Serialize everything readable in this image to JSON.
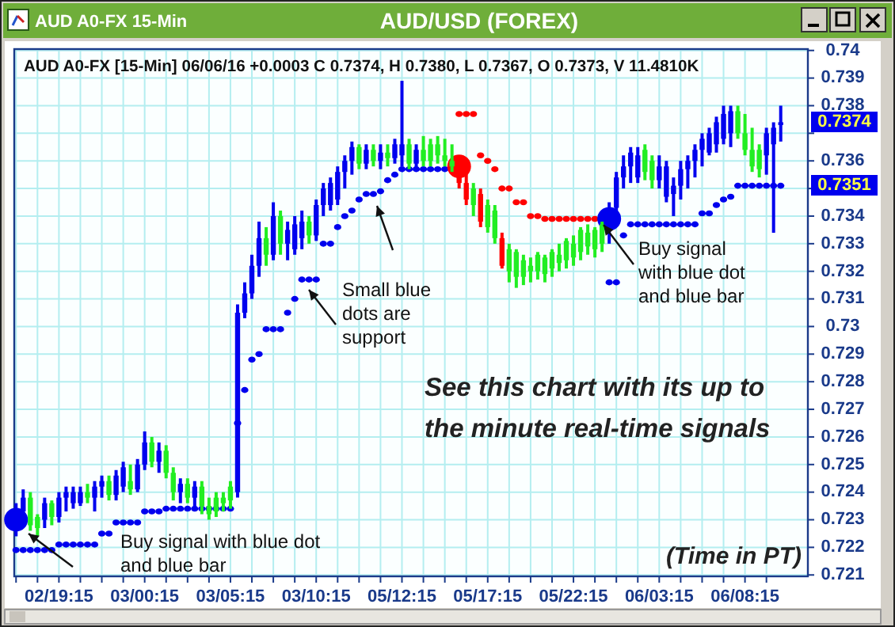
{
  "chart_data": {
    "type": "candlestick",
    "title": "AUD/USD (FOREX)",
    "subtitle": "AUD A0-FX [15-Min] 06/06/16 +0.0003 C 0.7374, H 0.7380, L 0.7367, O 0.7373, V 11.4810K",
    "categories": [
      null,
      null,
      null,
      null,
      null,
      null,
      "02/19:15",
      null,
      null,
      null,
      null,
      null,
      null,
      null,
      null,
      null,
      null,
      null,
      "03/00:15",
      null,
      null,
      null,
      null,
      null,
      null,
      null,
      null,
      null,
      null,
      null,
      "03/05:15",
      null,
      null,
      null,
      null,
      null,
      null,
      null,
      null,
      null,
      null,
      null,
      "03/10:15",
      null,
      null,
      null,
      null,
      null,
      null,
      null,
      null,
      null,
      null,
      null,
      "05/12:15",
      null,
      null,
      null,
      null,
      null,
      null,
      null,
      null,
      null,
      null,
      null,
      "05/17:15",
      null,
      null,
      null,
      null,
      null,
      null,
      null,
      null,
      null,
      null,
      null,
      "05/22:15",
      null,
      null,
      null,
      null,
      null,
      null,
      null,
      null,
      null,
      null,
      null,
      "06/03:15",
      null,
      null,
      null,
      null,
      null,
      null,
      null,
      null,
      null,
      null,
      null,
      "06/08:15",
      null,
      null,
      null,
      null,
      null
    ],
    "ohlc": [
      [
        0.7228,
        0.7236,
        0.7224,
        0.7233
      ],
      [
        0.7233,
        0.7241,
        0.723,
        0.7238
      ],
      [
        0.7238,
        0.724,
        0.7226,
        0.7228
      ],
      [
        0.7231,
        0.7232,
        0.7224,
        0.7227
      ],
      [
        0.723,
        0.7238,
        0.7227,
        0.7236
      ],
      [
        0.7236,
        0.7237,
        0.7228,
        0.7231
      ],
      [
        0.7231,
        0.724,
        0.7229,
        0.7238
      ],
      [
        0.7238,
        0.7242,
        0.7233,
        0.724
      ],
      [
        0.7236,
        0.7242,
        0.7234,
        0.724
      ],
      [
        0.7236,
        0.7242,
        0.7235,
        0.724
      ],
      [
        0.724,
        0.7243,
        0.7236,
        0.7238
      ],
      [
        0.7238,
        0.7244,
        0.7233,
        0.7242
      ],
      [
        0.7242,
        0.7246,
        0.7238,
        0.7244
      ],
      [
        0.7244,
        0.7246,
        0.7237,
        0.7239
      ],
      [
        0.7239,
        0.7248,
        0.7237,
        0.7246
      ],
      [
        0.7242,
        0.7251,
        0.724,
        0.7249
      ],
      [
        0.7244,
        0.725,
        0.7239,
        0.7241
      ],
      [
        0.7241,
        0.7252,
        0.724,
        0.725
      ],
      [
        0.725,
        0.7262,
        0.7248,
        0.7258
      ],
      [
        0.7258,
        0.726,
        0.7249,
        0.7251
      ],
      [
        0.7251,
        0.7258,
        0.7247,
        0.7255
      ],
      [
        0.7255,
        0.7257,
        0.7245,
        0.7247
      ],
      [
        0.7247,
        0.7249,
        0.7237,
        0.724
      ],
      [
        0.724,
        0.7245,
        0.7236,
        0.7243
      ],
      [
        0.7243,
        0.7245,
        0.7236,
        0.7238
      ],
      [
        0.7238,
        0.7244,
        0.7235,
        0.7242
      ],
      [
        0.7242,
        0.7244,
        0.7232,
        0.7235
      ],
      [
        0.7235,
        0.7238,
        0.723,
        0.7232
      ],
      [
        0.7238,
        0.724,
        0.7231,
        0.7233
      ],
      [
        0.7238,
        0.724,
        0.7233,
        0.7236
      ],
      [
        0.7242,
        0.7244,
        0.7234,
        0.7237
      ],
      [
        0.724,
        0.7308,
        0.7238,
        0.7305
      ],
      [
        0.7305,
        0.7316,
        0.7303,
        0.7312
      ],
      [
        0.7312,
        0.7326,
        0.731,
        0.7322
      ],
      [
        0.7322,
        0.7338,
        0.7318,
        0.7332
      ],
      [
        0.7332,
        0.7336,
        0.7322,
        0.7326
      ],
      [
        0.7326,
        0.7345,
        0.7324,
        0.734
      ],
      [
        0.734,
        0.7342,
        0.7326,
        0.733
      ],
      [
        0.733,
        0.7338,
        0.7324,
        0.7335
      ],
      [
        0.7328,
        0.734,
        0.7326,
        0.7337
      ],
      [
        0.7332,
        0.7342,
        0.7328,
        0.7338
      ],
      [
        0.7338,
        0.734,
        0.733,
        0.7333
      ],
      [
        0.7333,
        0.7346,
        0.7331,
        0.7344
      ],
      [
        0.7344,
        0.7352,
        0.734,
        0.735
      ],
      [
        0.7344,
        0.7354,
        0.7342,
        0.7352
      ],
      [
        0.7346,
        0.7358,
        0.7344,
        0.7356
      ],
      [
        0.7356,
        0.7362,
        0.735,
        0.736
      ],
      [
        0.736,
        0.7367,
        0.7355,
        0.7365
      ],
      [
        0.7365,
        0.7366,
        0.7357,
        0.7359
      ],
      [
        0.7359,
        0.7366,
        0.7357,
        0.7364
      ],
      [
        0.7364,
        0.7366,
        0.7358,
        0.736
      ],
      [
        0.736,
        0.7366,
        0.7357,
        0.7363
      ],
      [
        0.7363,
        0.7366,
        0.7358,
        0.7361
      ],
      [
        0.7361,
        0.7368,
        0.7359,
        0.7366
      ],
      [
        0.7362,
        0.7389,
        0.7358,
        0.7366
      ],
      [
        0.7366,
        0.7368,
        0.7357,
        0.7359
      ],
      [
        0.7359,
        0.7366,
        0.7357,
        0.7364
      ],
      [
        0.7364,
        0.7369,
        0.7358,
        0.736
      ],
      [
        0.7366,
        0.7368,
        0.7358,
        0.736
      ],
      [
        0.7366,
        0.7369,
        0.7359,
        0.7362
      ],
      [
        0.7362,
        0.7368,
        0.7358,
        0.736
      ],
      [
        0.736,
        0.7366,
        0.7356,
        0.7358
      ],
      [
        0.7358,
        0.736,
        0.735,
        0.7352
      ],
      [
        0.7352,
        0.7356,
        0.7344,
        0.7346
      ],
      [
        0.735,
        0.7352,
        0.734,
        0.7344
      ],
      [
        0.7348,
        0.735,
        0.7336,
        0.7338
      ],
      [
        0.7344,
        0.7346,
        0.7334,
        0.7336
      ],
      [
        0.7342,
        0.7344,
        0.733,
        0.7332
      ],
      [
        0.7332,
        0.7334,
        0.7321,
        0.7322
      ],
      [
        0.7328,
        0.733,
        0.7316,
        0.732
      ],
      [
        0.7327,
        0.7328,
        0.7314,
        0.7318
      ],
      [
        0.7324,
        0.7326,
        0.7315,
        0.7318
      ],
      [
        0.7322,
        0.7325,
        0.7316,
        0.732
      ],
      [
        0.7326,
        0.7327,
        0.7317,
        0.732
      ],
      [
        0.7325,
        0.7326,
        0.7316,
        0.7319
      ],
      [
        0.7327,
        0.7328,
        0.7318,
        0.7321
      ],
      [
        0.7326,
        0.733,
        0.732,
        0.7323
      ],
      [
        0.7331,
        0.7332,
        0.7321,
        0.7324
      ],
      [
        0.733,
        0.7333,
        0.7322,
        0.7325
      ],
      [
        0.7335,
        0.7336,
        0.7324,
        0.7327
      ],
      [
        0.7334,
        0.7337,
        0.7326,
        0.7329
      ],
      [
        0.7335,
        0.7336,
        0.7325,
        0.7328
      ],
      [
        0.7337,
        0.7338,
        0.7327,
        0.733
      ],
      [
        0.7336,
        0.7345,
        0.733,
        0.7343
      ],
      [
        0.7343,
        0.7356,
        0.734,
        0.7354
      ],
      [
        0.7354,
        0.7362,
        0.735,
        0.7358
      ],
      [
        0.7358,
        0.7365,
        0.7352,
        0.7363
      ],
      [
        0.7354,
        0.7365,
        0.7352,
        0.7362
      ],
      [
        0.7364,
        0.7366,
        0.7353,
        0.7356
      ],
      [
        0.736,
        0.7362,
        0.735,
        0.7353
      ],
      [
        0.7353,
        0.7362,
        0.735,
        0.7358
      ],
      [
        0.7347,
        0.736,
        0.7345,
        0.7358
      ],
      [
        0.7348,
        0.7354,
        0.734,
        0.7351
      ],
      [
        0.7351,
        0.736,
        0.7346,
        0.7357
      ],
      [
        0.7357,
        0.7362,
        0.735,
        0.736
      ],
      [
        0.736,
        0.7366,
        0.7354,
        0.7364
      ],
      [
        0.7364,
        0.737,
        0.7358,
        0.7368
      ],
      [
        0.7363,
        0.7372,
        0.7362,
        0.737
      ],
      [
        0.7366,
        0.7376,
        0.7363,
        0.7374
      ],
      [
        0.7368,
        0.738,
        0.7366,
        0.7377
      ],
      [
        0.737,
        0.738,
        0.7365,
        0.7378
      ],
      [
        0.7378,
        0.738,
        0.7368,
        0.737
      ],
      [
        0.737,
        0.7377,
        0.7362,
        0.7364
      ],
      [
        0.7364,
        0.7372,
        0.7356,
        0.7358
      ],
      [
        0.7364,
        0.7366,
        0.7354,
        0.7357
      ],
      [
        0.7362,
        0.7372,
        0.7355,
        0.737
      ],
      [
        0.7366,
        0.7374,
        0.7334,
        0.7372
      ],
      [
        0.7373,
        0.738,
        0.7367,
        0.7374
      ]
    ],
    "colors": [
      "#0000ee",
      "#0000ee",
      "#22ee22",
      "#22ee22",
      "#0000ee",
      "#22ee22",
      "#0000ee",
      "#0000ee",
      "#0000ee",
      "#0000ee",
      "#22ee22",
      "#0000ee",
      "#0000ee",
      "#22ee22",
      "#0000ee",
      "#0000ee",
      "#22ee22",
      "#0000ee",
      "#0000ee",
      "#22ee22",
      "#0000ee",
      "#22ee22",
      "#22ee22",
      "#0000ee",
      "#22ee22",
      "#0000ee",
      "#22ee22",
      "#22ee22",
      "#22ee22",
      "#22ee22",
      "#22ee22",
      "#0000ee",
      "#0000ee",
      "#0000ee",
      "#0000ee",
      "#22ee22",
      "#0000ee",
      "#22ee22",
      "#0000ee",
      "#0000ee",
      "#0000ee",
      "#22ee22",
      "#0000ee",
      "#0000ee",
      "#0000ee",
      "#0000ee",
      "#0000ee",
      "#0000ee",
      "#22ee22",
      "#0000ee",
      "#22ee22",
      "#0000ee",
      "#22ee22",
      "#0000ee",
      "#0000ee",
      "#22ee22",
      "#0000ee",
      "#22ee22",
      "#22ee22",
      "#22ee22",
      "#22ee22",
      "#22ee22",
      "#ff0000",
      "#ff0000",
      "#22ee22",
      "#ff0000",
      "#22ee22",
      "#22ee22",
      "#ff0000",
      "#22ee22",
      "#22ee22",
      "#22ee22",
      "#22ee22",
      "#22ee22",
      "#22ee22",
      "#22ee22",
      "#22ee22",
      "#22ee22",
      "#22ee22",
      "#22ee22",
      "#22ee22",
      "#22ee22",
      "#22ee22",
      "#0000ee",
      "#0000ee",
      "#0000ee",
      "#0000ee",
      "#0000ee",
      "#22ee22",
      "#22ee22",
      "#0000ee",
      "#0000ee",
      "#0000ee",
      "#0000ee",
      "#0000ee",
      "#0000ee",
      "#0000ee",
      "#0000ee",
      "#0000ee",
      "#0000ee",
      "#0000ee",
      "#22ee22",
      "#22ee22",
      "#22ee22",
      "#22ee22",
      "#0000ee",
      "#0000ee",
      "#0000ee"
    ],
    "series": [
      {
        "type": "scatter",
        "color": "#0000ee",
        "values": [
          0.7219,
          0.7219,
          0.7219,
          0.7219,
          0.7219,
          0.7219,
          0.7221,
          0.7221,
          0.7221,
          0.7221,
          0.7221,
          0.7221,
          0.7225,
          0.7225,
          0.7229,
          0.7229,
          0.7229,
          0.7229,
          0.7233,
          0.7233,
          0.7233,
          0.7234,
          0.7234,
          0.7234,
          0.7234,
          0.7234,
          0.7234,
          0.7234,
          0.7234,
          0.7234,
          0.7234,
          0.7265,
          0.7277,
          0.7288,
          0.729,
          0.7299,
          0.7299,
          0.7299,
          0.7305,
          0.731,
          0.7317,
          0.7317,
          0.7317,
          0.733,
          0.733,
          0.7336,
          0.734,
          0.7342,
          0.7346,
          0.7348,
          0.7348,
          0.7349,
          0.7353,
          0.7355,
          0.7357,
          0.7357,
          0.7357,
          0.7357,
          0.7357,
          0.7357,
          0.7357,
          null,
          null,
          null,
          null,
          null,
          null,
          null,
          null,
          null,
          null,
          null,
          null,
          null,
          null,
          null,
          null,
          null,
          null,
          null,
          null,
          null,
          null,
          0.7316,
          0.7316,
          0.7333,
          0.7337,
          0.7337,
          0.7337,
          0.7337,
          0.7337,
          0.7337,
          0.7337,
          0.7337,
          0.7337,
          0.7337,
          0.7341,
          0.7341,
          0.7344,
          0.7346,
          0.7347,
          0.7351,
          0.7351,
          0.7351,
          0.7351,
          0.7351,
          0.7351,
          0.7351
        ]
      },
      {
        "type": "scatter",
        "color": "#ff0000",
        "values": [
          null,
          null,
          null,
          null,
          null,
          null,
          null,
          null,
          null,
          null,
          null,
          null,
          null,
          null,
          null,
          null,
          null,
          null,
          null,
          null,
          null,
          null,
          null,
          null,
          null,
          null,
          null,
          null,
          null,
          null,
          null,
          null,
          null,
          null,
          null,
          null,
          null,
          null,
          null,
          null,
          null,
          null,
          null,
          null,
          null,
          null,
          null,
          null,
          null,
          null,
          null,
          null,
          null,
          null,
          null,
          null,
          null,
          null,
          null,
          null,
          null,
          null,
          0.7377,
          0.7377,
          0.7377,
          0.7362,
          0.736,
          0.7357,
          0.735,
          0.735,
          0.7345,
          0.7345,
          0.734,
          0.734,
          0.7339,
          0.7339,
          0.7339,
          0.7339,
          0.7339,
          0.7339,
          0.7339,
          0.7339,
          null,
          null,
          null,
          null,
          null,
          null,
          null,
          null,
          null,
          null,
          null,
          null,
          null,
          null,
          null,
          null,
          null,
          null,
          null,
          null,
          null,
          null,
          null,
          null,
          null,
          null
        ]
      },
      {
        "type": "bubble",
        "color": "#0000ee",
        "sizes": [
          1,
          null,
          null,
          null,
          null,
          null,
          null,
          null,
          null,
          null,
          null,
          null,
          null,
          null,
          null,
          null,
          null,
          null,
          null,
          null,
          null,
          null,
          null,
          null,
          null,
          null,
          null,
          null,
          null,
          null,
          null,
          null,
          null,
          null,
          null,
          null,
          null,
          null,
          null,
          null,
          null,
          null,
          null,
          null,
          null,
          null,
          null,
          null,
          null,
          null,
          null,
          null,
          null,
          null,
          null,
          null,
          null,
          null,
          null,
          null,
          null,
          null,
          null,
          null,
          null,
          null,
          null,
          null,
          null,
          null,
          null,
          null,
          null,
          null,
          null,
          null,
          null,
          null,
          null,
          null,
          null,
          null,
          null,
          1,
          null,
          null,
          null,
          null,
          null,
          null,
          null,
          null,
          null,
          null,
          null,
          null,
          null,
          null,
          null,
          null,
          null,
          null,
          null,
          null,
          null,
          null,
          null,
          null
        ],
        "values": [
          0.723,
          null,
          null,
          null,
          null,
          null,
          null,
          null,
          null,
          null,
          null,
          null,
          null,
          null,
          null,
          null,
          null,
          null,
          null,
          null,
          null,
          null,
          null,
          null,
          null,
          null,
          null,
          null,
          null,
          null,
          null,
          null,
          null,
          null,
          null,
          null,
          null,
          null,
          null,
          null,
          null,
          null,
          null,
          null,
          null,
          null,
          null,
          null,
          null,
          null,
          null,
          null,
          null,
          null,
          null,
          null,
          null,
          null,
          null,
          null,
          null,
          null,
          null,
          null,
          null,
          null,
          null,
          null,
          null,
          null,
          null,
          null,
          null,
          null,
          null,
          null,
          null,
          null,
          null,
          null,
          null,
          null,
          null,
          0.7339,
          null,
          null,
          null,
          null,
          null,
          null,
          null,
          null,
          null,
          null,
          null,
          null,
          null,
          null,
          null,
          null,
          null,
          null,
          null,
          null,
          null,
          null,
          null,
          null
        ]
      },
      {
        "type": "bubble",
        "color": "#ff0000",
        "sizes": [
          null,
          null,
          null,
          null,
          null,
          null,
          null,
          null,
          null,
          null,
          null,
          null,
          null,
          null,
          null,
          null,
          null,
          null,
          null,
          null,
          null,
          null,
          null,
          null,
          null,
          null,
          null,
          null,
          null,
          null,
          null,
          null,
          null,
          null,
          null,
          null,
          null,
          null,
          null,
          null,
          null,
          null,
          null,
          null,
          null,
          null,
          null,
          null,
          null,
          null,
          null,
          null,
          null,
          null,
          null,
          null,
          null,
          null,
          null,
          null,
          null,
          null,
          1,
          null,
          null,
          null,
          null,
          null,
          null,
          null,
          null,
          null,
          null,
          null,
          null,
          null,
          null,
          null,
          null,
          null,
          null,
          null,
          null,
          null,
          null,
          null,
          null,
          null,
          null,
          null,
          null,
          null,
          null,
          null,
          null,
          null,
          null,
          null,
          null,
          null,
          null,
          null,
          null,
          null,
          null,
          null,
          null,
          null
        ],
        "values": [
          null,
          null,
          null,
          null,
          null,
          null,
          null,
          null,
          null,
          null,
          null,
          null,
          null,
          null,
          null,
          null,
          null,
          null,
          null,
          null,
          null,
          null,
          null,
          null,
          null,
          null,
          null,
          null,
          null,
          null,
          null,
          null,
          null,
          null,
          null,
          null,
          null,
          null,
          null,
          null,
          null,
          null,
          null,
          null,
          null,
          null,
          null,
          null,
          null,
          null,
          null,
          null,
          null,
          null,
          null,
          null,
          null,
          null,
          null,
          null,
          null,
          null,
          0.7358,
          null,
          null,
          null,
          null,
          null,
          null,
          null,
          null,
          null,
          null,
          null,
          null,
          null,
          null,
          null,
          null,
          null,
          null,
          null,
          null,
          null,
          null,
          null,
          null,
          null,
          null,
          null,
          null,
          null,
          null,
          null,
          null,
          null,
          null,
          null,
          null,
          null,
          null,
          null,
          null,
          null,
          null,
          null,
          null,
          null
        ]
      }
    ],
    "ylim": [
      0.72095,
      0.74005
    ],
    "yticks": [
      0.721,
      0.722,
      0.723,
      0.724,
      0.725,
      0.726,
      0.727,
      0.728,
      0.729,
      0.73,
      0.731,
      0.732,
      0.733,
      0.734,
      {
        "value": 0.735,
        "label": null
      },
      0.736,
      {
        "value": 0.737,
        "label": null
      },
      0.738,
      0.739,
      0.74
    ],
    "grid": true,
    "annotations": [
      "AUD A0-FX 15-Min",
      "Buy signal with blue dot\nand blue bar",
      "Small blue\ndots are\nsupport",
      "Buy signal\nwith blue dot\nand blue bar",
      "See this chart with its up to\nthe minute real-time signals",
      "(Time in PT)",
      "0.7374",
      "0.7351"
    ]
  }
}
